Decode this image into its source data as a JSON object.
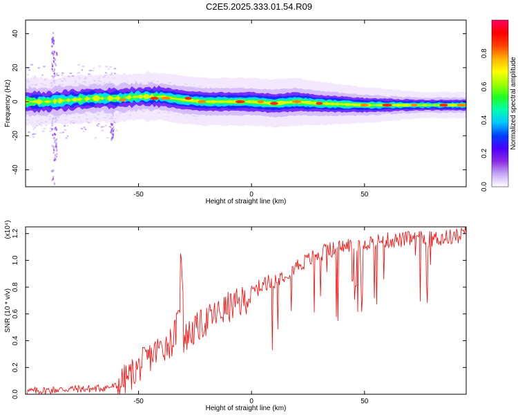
{
  "title": "C2E5.2025.333.01.54.R09",
  "chart_data": [
    {
      "type": "heatmap",
      "xlabel": "Height of straight line (km)",
      "ylabel": "Frequency (Hz)",
      "xlim": [
        -100,
        95
      ],
      "ylim": [
        -50,
        48
      ],
      "xticks": [
        -50,
        0,
        50
      ],
      "xtick_labels": [
        "-50",
        "0",
        "50"
      ],
      "yticks": [
        -40,
        -20,
        0,
        20,
        40
      ],
      "ytick_labels": [
        "-40",
        "-20",
        "0",
        "20",
        "40"
      ],
      "colorbar": {
        "label": "Normalized spectral amplitude",
        "ticks": [
          0.0,
          0.2,
          0.4,
          0.6,
          0.8
        ],
        "tick_labels": [
          "0.0",
          "0.2",
          "0.4",
          "0.6",
          "0.8"
        ],
        "colormap": [
          "#ffffff",
          "#c5a8f5",
          "#8a2be2",
          "#4b00ff",
          "#0040ff",
          "#00c8ff",
          "#00ffb0",
          "#20ff20",
          "#a0ff00",
          "#ffff00",
          "#ffb000",
          "#ff4000",
          "#ff0000",
          "#ff0060"
        ]
      },
      "ridge": {
        "height_km": [
          -100,
          -90,
          -80,
          -70,
          -60,
          -50,
          -40,
          -30,
          -20,
          -10,
          0,
          10,
          20,
          30,
          50,
          70,
          95
        ],
        "frequency_hz": [
          0,
          0,
          1,
          2,
          2,
          3,
          3,
          1,
          0,
          0,
          0,
          -1,
          0,
          -1,
          -2,
          -2,
          -2
        ]
      }
    },
    {
      "type": "line",
      "xlabel": "Height of straight line (km)",
      "ylabel": "SNR (10 * v/v)",
      "y_multiplier_label": "(x10⁴)",
      "xlim": [
        -100,
        95
      ],
      "ylim": [
        0.0,
        1.25
      ],
      "xticks": [
        -50,
        0,
        50
      ],
      "xtick_labels": [
        "-50",
        "0",
        "50"
      ],
      "yticks": [
        0.0,
        0.2,
        0.4,
        0.6,
        0.8,
        1.0,
        1.2
      ],
      "ytick_labels": [
        "0.0",
        "0.2",
        "0.4",
        "0.6",
        "0.8",
        "1.0",
        "1.2"
      ],
      "series": [
        {
          "color": "#ff0000",
          "x": [
            -100,
            -90,
            -80,
            -70,
            -65,
            -60,
            -55,
            -50,
            -45,
            -40,
            -35,
            -32,
            -31,
            -30,
            -28,
            -25,
            -20,
            -15,
            -10,
            -5,
            0,
            5,
            10,
            15,
            20,
            25,
            30,
            35,
            40,
            45,
            50,
            55,
            60,
            65,
            70,
            75,
            80,
            85,
            90,
            95
          ],
          "y": [
            0.02,
            0.03,
            0.04,
            0.04,
            0.05,
            0.06,
            0.12,
            0.2,
            0.28,
            0.35,
            0.4,
            0.55,
            1.08,
            0.4,
            0.45,
            0.48,
            0.55,
            0.6,
            0.65,
            0.68,
            0.75,
            0.82,
            0.85,
            0.9,
            0.96,
            1.0,
            1.05,
            1.08,
            1.1,
            1.12,
            1.13,
            1.14,
            1.15,
            1.15,
            1.16,
            1.16,
            1.16,
            1.17,
            1.18,
            1.2
          ]
        }
      ]
    }
  ]
}
